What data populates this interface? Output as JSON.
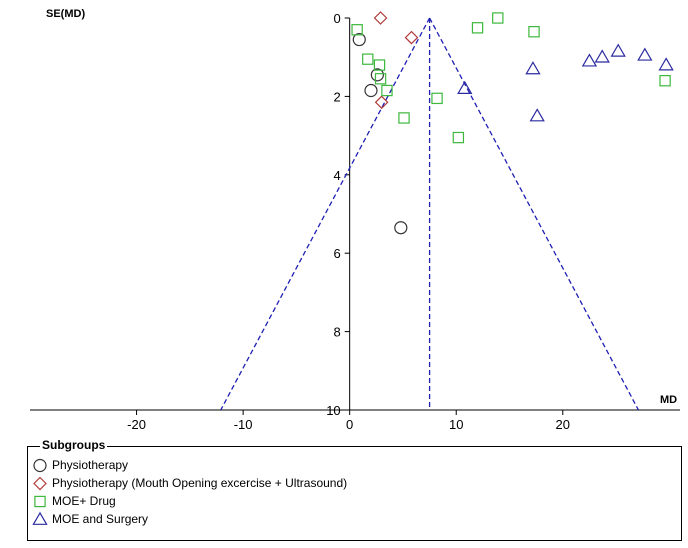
{
  "chart_data": {
    "type": "scatter",
    "subtype": "funnel-plot",
    "xlabel": "MD",
    "ylabel": "SE(MD)",
    "xlim": [
      -30,
      31
    ],
    "ylim": [
      10,
      0
    ],
    "x_ticks": [
      -20,
      -10,
      0,
      10,
      20
    ],
    "y_ticks": [
      0,
      2,
      4,
      6,
      8,
      10
    ],
    "funnel": {
      "center": 7.5,
      "se_max": 10,
      "lower_x_at_se_max": -12.1,
      "upper_x_at_se_max": 27.1,
      "color": "#1f1fb4"
    },
    "legend_title": "Subgroups",
    "series": [
      {
        "name": "Physiotherapy",
        "marker": "circle",
        "color": "#333333",
        "points": [
          [
            0.9,
            0.55
          ],
          [
            2.6,
            1.45
          ],
          [
            2.0,
            1.85
          ],
          [
            4.8,
            5.35
          ]
        ]
      },
      {
        "name": "Physiotherapy (Mouth Opening excercise + Ultrasound)",
        "marker": "diamond",
        "color": "#b03a3a",
        "points": [
          [
            2.9,
            0.0
          ],
          [
            5.8,
            0.5
          ],
          [
            3.0,
            2.15
          ]
        ]
      },
      {
        "name": "MOE+ Drug",
        "marker": "square",
        "color": "#3db83d",
        "points": [
          [
            0.7,
            0.3
          ],
          [
            1.7,
            1.05
          ],
          [
            2.8,
            1.2
          ],
          [
            2.9,
            1.55
          ],
          [
            3.5,
            1.85
          ],
          [
            5.1,
            2.55
          ],
          [
            8.2,
            2.05
          ],
          [
            10.2,
            3.05
          ],
          [
            12.0,
            0.25
          ],
          [
            13.9,
            0.0
          ],
          [
            17.3,
            0.35
          ],
          [
            29.6,
            1.6
          ]
        ]
      },
      {
        "name": "MOE and Surgery",
        "marker": "triangle",
        "color": "#2b2ba0",
        "points": [
          [
            10.8,
            1.8
          ],
          [
            17.2,
            1.3
          ],
          [
            17.6,
            2.5
          ],
          [
            22.5,
            1.1
          ],
          [
            23.7,
            1.0
          ],
          [
            25.2,
            0.85
          ],
          [
            27.7,
            0.95
          ],
          [
            29.7,
            1.2
          ]
        ]
      }
    ]
  }
}
